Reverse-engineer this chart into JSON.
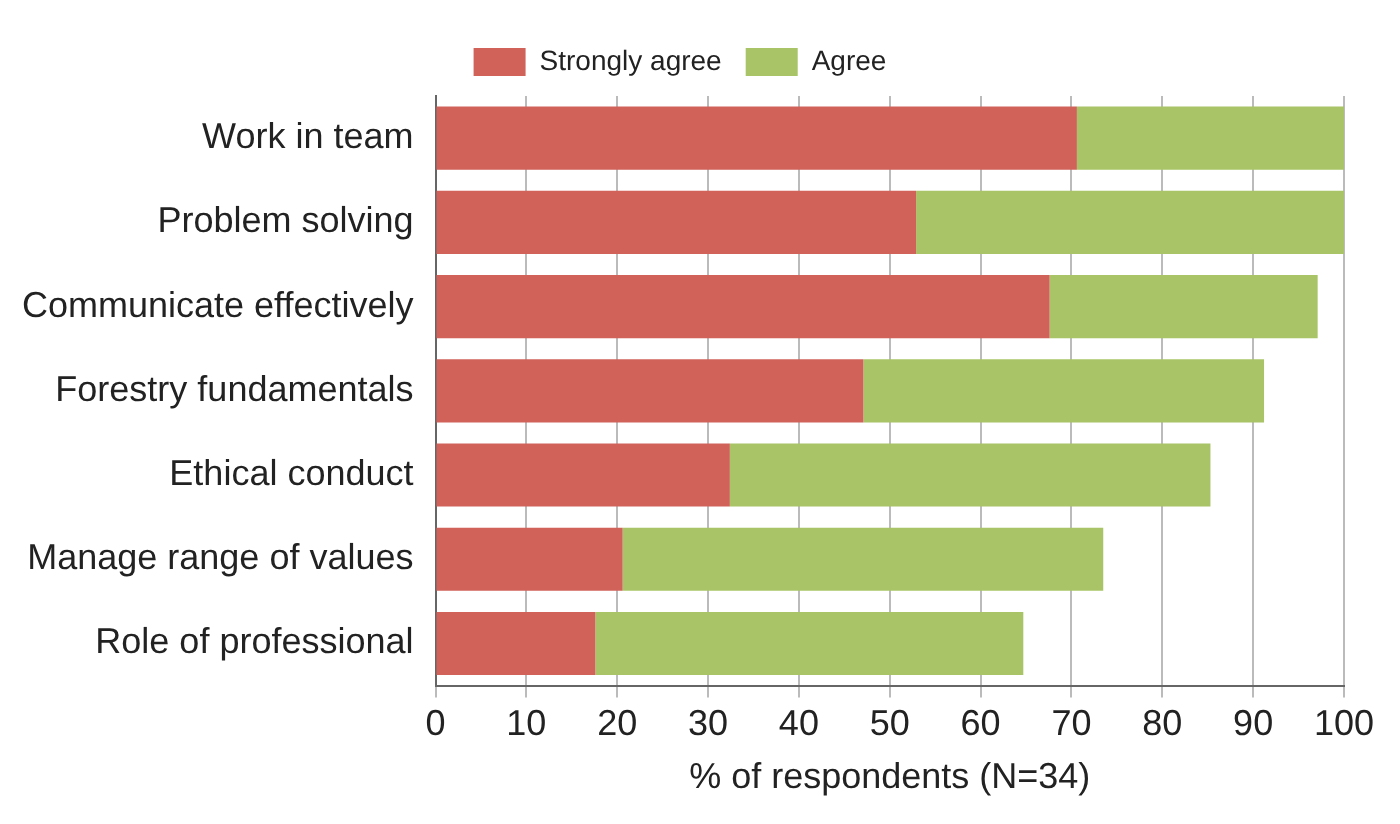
{
  "chart_data": {
    "type": "bar",
    "orientation": "horizontal",
    "stacked": true,
    "xlabel": "% of respondents (N=34)",
    "categories": [
      "Work in team",
      "Problem solving",
      "Communicate effectively",
      "Forestry fundamentals",
      "Ethical conduct",
      "Manage range of values",
      "Role of professional"
    ],
    "series": [
      {
        "name": "Strongly agree",
        "color": "#d1625a",
        "values": [
          70.6,
          52.9,
          67.6,
          47.1,
          32.4,
          20.6,
          17.6
        ]
      },
      {
        "name": "Agree",
        "color": "#a8c466",
        "values": [
          29.4,
          47.1,
          29.5,
          44.1,
          52.9,
          52.9,
          47.1
        ]
      }
    ],
    "xlim": [
      0,
      100
    ],
    "xticks": [
      0,
      10,
      20,
      30,
      40,
      50,
      60,
      70,
      80,
      90,
      100
    ],
    "grid": "x",
    "legend": "top"
  }
}
